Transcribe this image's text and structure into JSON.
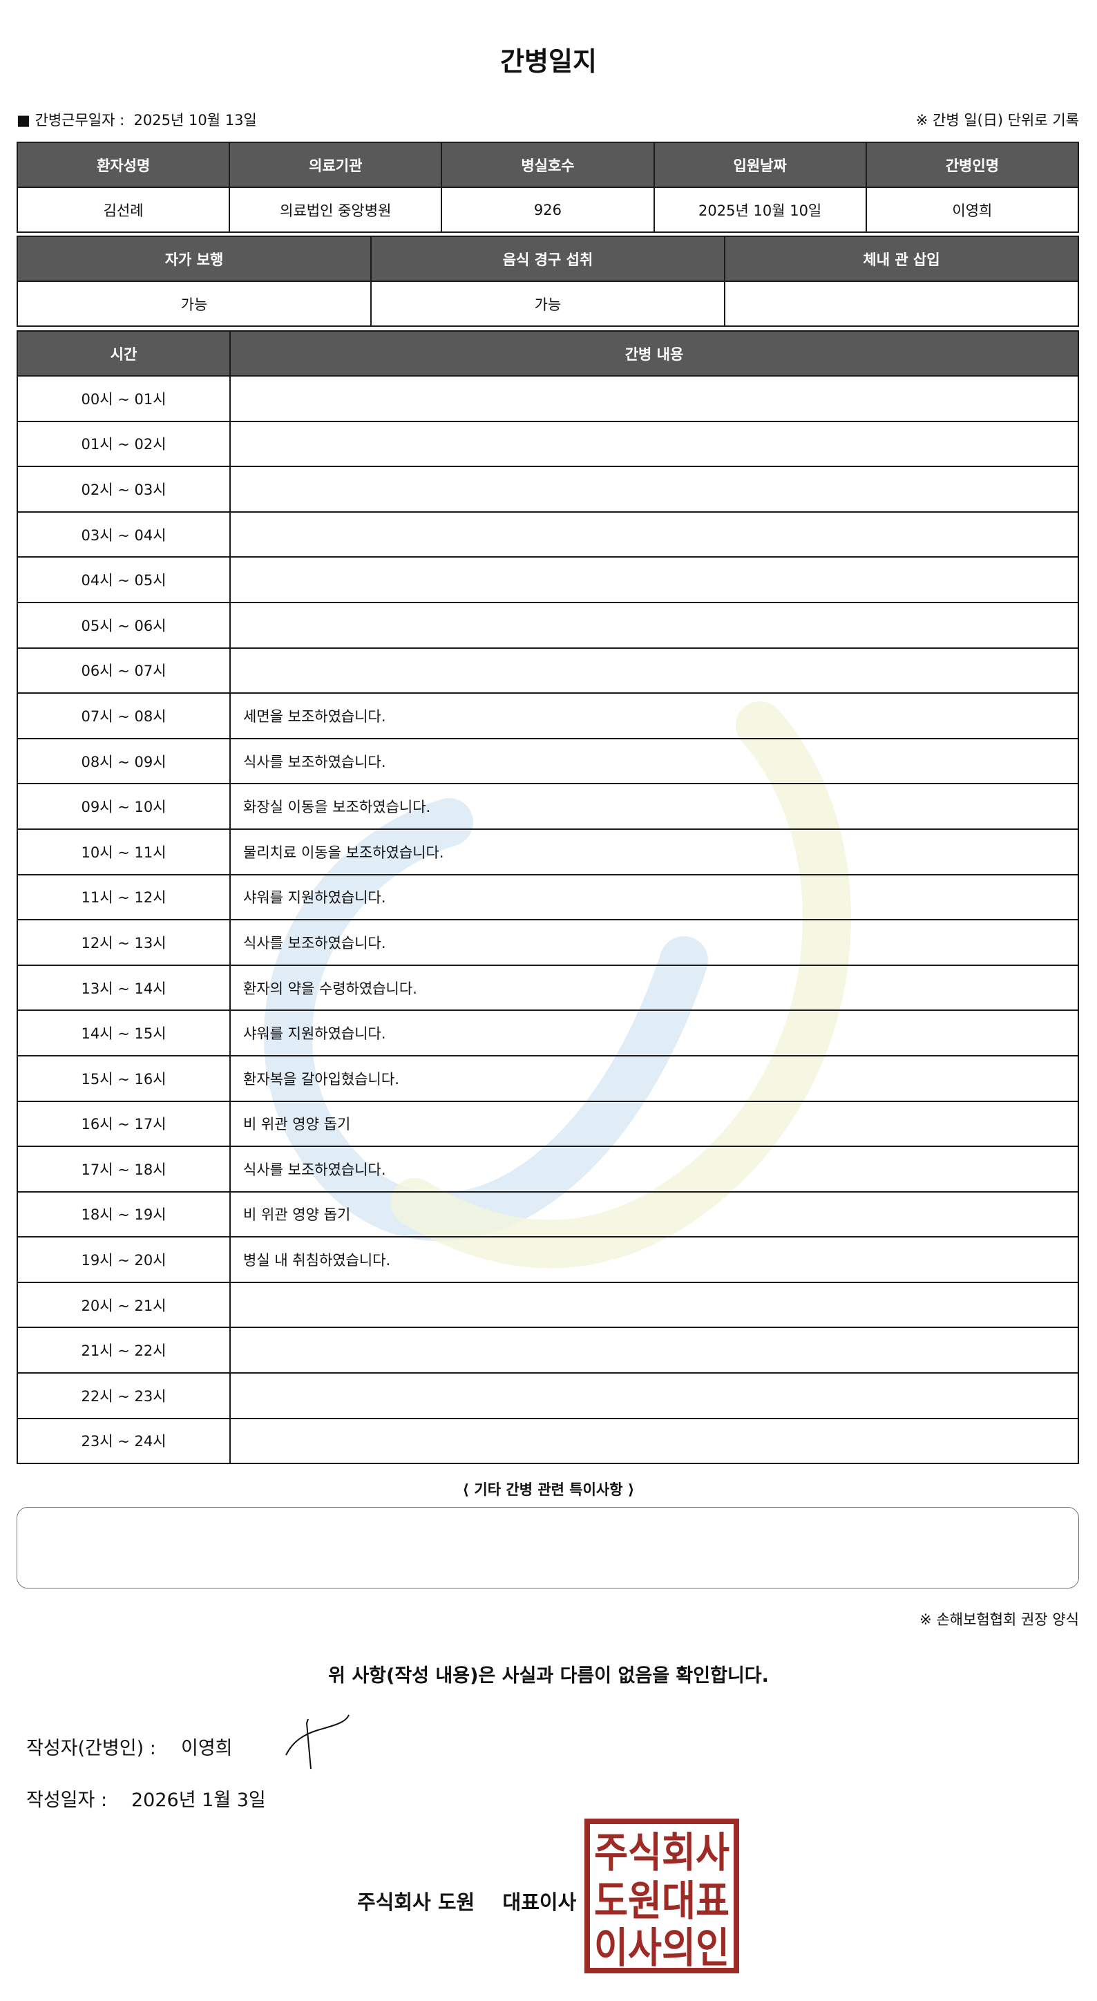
{
  "title": "간병일지",
  "work_date": {
    "label": "■ 간병근무일자  :",
    "value": "2025년 10월 13일"
  },
  "note_daily": "※ 간병 일(日) 단위로 기록",
  "patient_table": {
    "headers": [
      "환자성명",
      "의료기관",
      "병실호수",
      "입원날짜",
      "간병인명"
    ],
    "values": [
      "김선례",
      "의료법인 중앙병원",
      "926",
      "2025년 10월 10일",
      "이영희"
    ]
  },
  "status_table": {
    "headers": [
      "자가 보행",
      "음식 경구 섭취",
      "체내 관 삽입"
    ],
    "values": [
      "가능",
      "가능",
      ""
    ]
  },
  "care_table": {
    "headers": [
      "시간",
      "간병 내용"
    ],
    "rows": [
      {
        "time": "00시 ~ 01시",
        "content": ""
      },
      {
        "time": "01시 ~ 02시",
        "content": ""
      },
      {
        "time": "02시 ~ 03시",
        "content": ""
      },
      {
        "time": "03시 ~ 04시",
        "content": ""
      },
      {
        "time": "04시 ~ 05시",
        "content": ""
      },
      {
        "time": "05시 ~ 06시",
        "content": ""
      },
      {
        "time": "06시 ~ 07시",
        "content": ""
      },
      {
        "time": "07시 ~ 08시",
        "content": "세면을 보조하였습니다."
      },
      {
        "time": "08시 ~ 09시",
        "content": "식사를 보조하였습니다."
      },
      {
        "time": "09시 ~ 10시",
        "content": "화장실 이동을 보조하였습니다."
      },
      {
        "time": "10시 ~ 11시",
        "content": "물리치료 이동을 보조하였습니다."
      },
      {
        "time": "11시 ~ 12시",
        "content": "샤워를 지원하였습니다."
      },
      {
        "time": "12시 ~ 13시",
        "content": "식사를 보조하였습니다."
      },
      {
        "time": "13시 ~ 14시",
        "content": "환자의 약을 수령하였습니다."
      },
      {
        "time": "14시 ~ 15시",
        "content": "샤워를 지원하였습니다."
      },
      {
        "time": "15시 ~ 16시",
        "content": "환자복을 갈아입혔습니다."
      },
      {
        "time": "16시 ~ 17시",
        "content": "비 위관 영양 돕기"
      },
      {
        "time": "17시 ~ 18시",
        "content": "식사를 보조하였습니다."
      },
      {
        "time": "18시 ~ 19시",
        "content": "비 위관 영양 돕기"
      },
      {
        "time": "19시 ~ 20시",
        "content": "병실 내 취침하였습니다."
      },
      {
        "time": "20시 ~ 21시",
        "content": ""
      },
      {
        "time": "21시 ~ 22시",
        "content": ""
      },
      {
        "time": "22시 ~ 23시",
        "content": ""
      },
      {
        "time": "23시 ~ 24시",
        "content": ""
      }
    ]
  },
  "special_notes": {
    "label": "⟨ 기타 간병 관련 특이사항 ⟩",
    "value": ""
  },
  "association_note": "※ 손해보험협회 권장 양식",
  "confirmation": "위 사항(작성 내용)은 사실과 다름이 없음을 확인합니다.",
  "author": {
    "label": "작성자(간병인) :",
    "name": "이영희"
  },
  "written_date": {
    "label": "작성일자 :",
    "value": "2026년 1월 3일"
  },
  "company": "주식회사 도원    대표이사",
  "seal_text": [
    "주식회사",
    "도원대표",
    "이사의인"
  ],
  "colors": {
    "header_bg": "#595959",
    "seal": "#9e2a26",
    "watermark_blue": "#d6e6f3",
    "watermark_yellow": "#f3f5dc"
  }
}
